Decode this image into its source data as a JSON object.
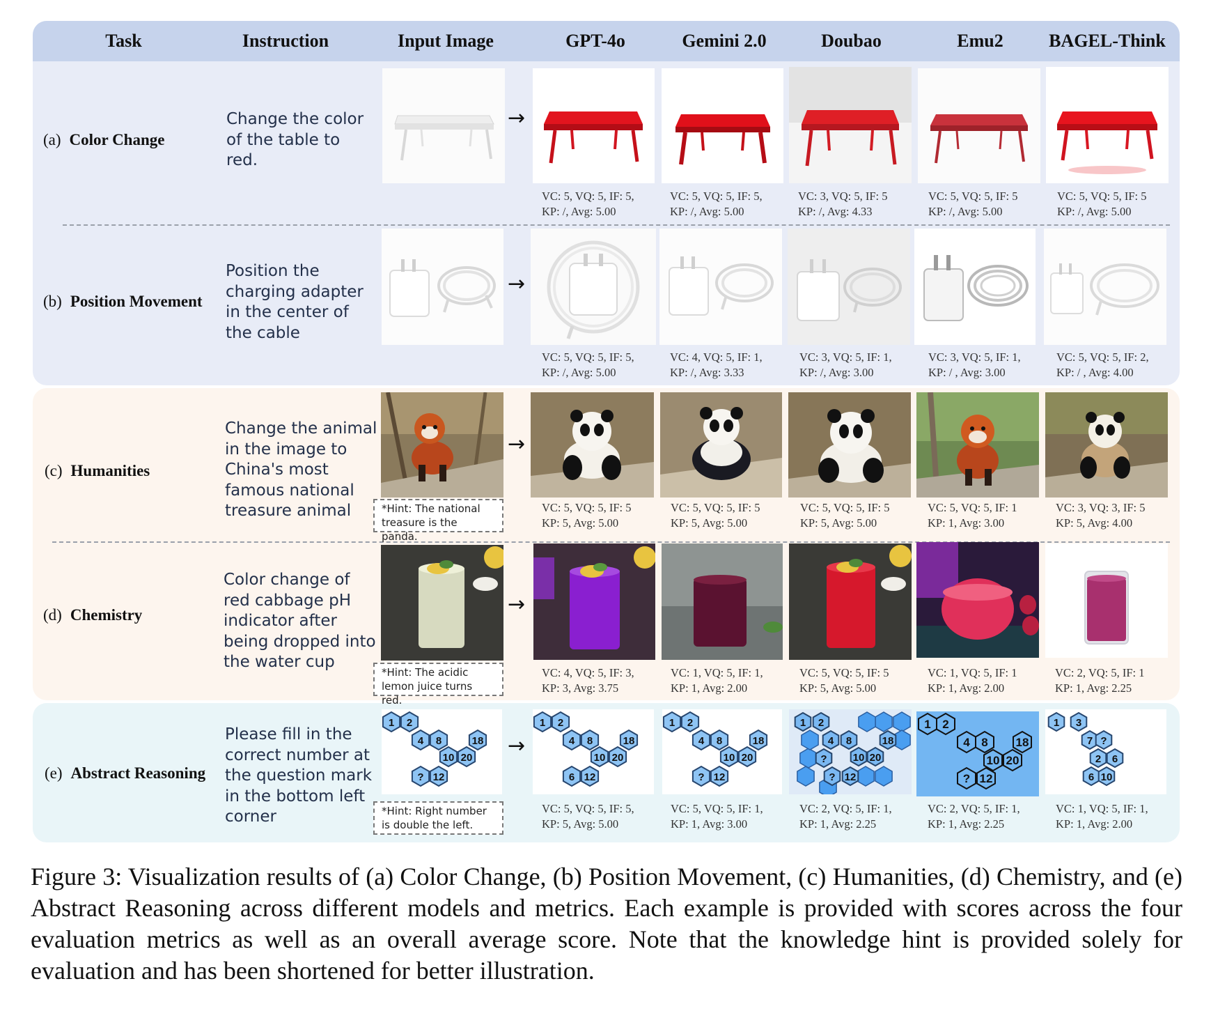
{
  "header": {
    "task": "Task",
    "instruction": "Instruction",
    "input_image": "Input Image",
    "models": [
      "GPT-4o",
      "Gemini 2.0",
      "Doubao",
      "Emu2",
      "BAGEL-Think"
    ]
  },
  "colors": {
    "header_band": "#c6d3ec",
    "blue_panel": "#e8ecf7",
    "peach_panel": "#fdf5ee",
    "cyan_panel": "#e9f5f8"
  },
  "arrow": "→",
  "rows": [
    {
      "index": "(a)",
      "task": "Color Change",
      "instruction": [
        "Change the color",
        "of the table to",
        "red."
      ],
      "hint": null,
      "scores": [
        [
          "VC: 5,  VQ: 5,  IF: 5,",
          "KP:  /,  Avg: 5.00"
        ],
        [
          "VC: 5,  VQ: 5,  IF: 5,",
          "KP:  /,  Avg: 5.00"
        ],
        [
          "VC: 3,  VQ: 5,  IF: 5",
          "KP: /,   Avg: 4.33"
        ],
        [
          "VC: 5,  VQ: 5,  IF: 5",
          "KP:  /,  Avg: 5.00"
        ],
        [
          "VC: 5,  VQ: 5,  IF: 5",
          "KP:  /,  Avg: 5.00"
        ]
      ]
    },
    {
      "index": "(b)",
      "task": "Position Movement",
      "instruction": [
        "Position the",
        "charging adapter",
        "in the center of",
        "the cable"
      ],
      "hint": null,
      "scores": [
        [
          "VC: 5,  VQ: 5,  IF: 5,",
          "KP: /,    Avg: 5.00"
        ],
        [
          "VC: 4,  VQ: 5,  IF: 1,",
          "KP: /,    Avg: 3.33"
        ],
        [
          "VC: 3,  VQ: 5,  IF: 1,",
          "KP: /,    Avg: 3.00"
        ],
        [
          "VC: 3,  VQ: 5,  IF: 1,",
          "KP: / ,   Avg: 3.00"
        ],
        [
          "VC: 5,  VQ: 5,  IF: 2,",
          "KP: / ,   Avg: 4.00"
        ]
      ]
    },
    {
      "index": "(c)",
      "task": "Humanities",
      "instruction": [
        "Change the animal",
        "in the image to",
        "China's most",
        "famous national",
        "treasure animal"
      ],
      "hint": [
        "*Hint: The national",
        "treasure is the panda."
      ],
      "scores": [
        [
          "VC: 5,  VQ: 5,  IF: 5",
          "KP:  5,  Avg: 5.00"
        ],
        [
          "VC: 5,  VQ: 5,  IF: 5",
          "KP:  5,  Avg: 5.00"
        ],
        [
          "VC: 5,  VQ: 5,  IF: 5",
          "KP:  5,  Avg: 5.00"
        ],
        [
          "VC: 5,  VQ: 5,  IF: 1",
          "KP:  1,  Avg: 3.00"
        ],
        [
          "VC: 3,  VQ: 3,  IF: 5",
          "KP:  5,  Avg: 4.00"
        ]
      ]
    },
    {
      "index": "(d)",
      "task": "Chemistry",
      "instruction": [
        "Color change of",
        "red cabbage pH",
        "indicator after",
        "being dropped into",
        "the water cup"
      ],
      "hint": [
        "*Hint: The acidic",
        "lemon juice turns red."
      ],
      "scores": [
        [
          "VC: 4,  VQ: 5,  IF: 3,",
          "KP:  3,  Avg: 3.75"
        ],
        [
          "VC: 1,  VQ: 5,  IF: 1,",
          "KP:  1,  Avg: 2.00"
        ],
        [
          "VC: 5,  VQ: 5,  IF: 5",
          "KP:  5,  Avg: 5.00"
        ],
        [
          "VC: 1,  VQ: 5,  IF: 1",
          "KP:  1,  Avg: 2.00"
        ],
        [
          "VC: 2,  VQ: 5,  IF: 1",
          "KP:  1,  Avg: 2.25"
        ]
      ]
    },
    {
      "index": "(e)",
      "task": "Abstract Reasoning",
      "instruction": [
        "Please fill in the",
        "correct number at",
        "the question mark",
        "in the bottom left",
        "corner"
      ],
      "hint": [
        "*Hint:  Right number",
        "is double the left."
      ],
      "scores": [
        [
          "VC: 5,  VQ: 5,  IF: 5,",
          "KP:  5,  Avg: 5.00"
        ],
        [
          "VC: 5,  VQ: 5,  IF: 1,",
          "KP:  1,  Avg: 3.00"
        ],
        [
          "VC: 2,  VQ: 5,  IF: 1,",
          "KP:  1,  Avg: 2.25"
        ],
        [
          "VC: 2,  VQ: 5,  IF: 1,",
          "KP:  1,  Avg: 2.25"
        ],
        [
          "VC: 1,  VQ: 5,  IF: 1,",
          "KP:  1,  Avg: 2.00"
        ]
      ]
    }
  ],
  "hex_puzzles": {
    "input": [
      "1",
      "2",
      "4",
      "8",
      "18",
      "10",
      "20",
      "?",
      "12"
    ],
    "gpt4o": [
      "1",
      "2",
      "4",
      "8",
      "18",
      "10",
      "20",
      "6",
      "12"
    ],
    "gemini": [
      "1",
      "2",
      "4",
      "8",
      "18",
      "10",
      "20",
      "?",
      "12"
    ],
    "doubao": [
      "1",
      "2",
      "4",
      "8",
      "18",
      "10",
      "20",
      "?",
      "?",
      "12"
    ],
    "emu2": [
      "1",
      "2",
      "4",
      "8",
      "18",
      "10",
      "20",
      "?",
      "12"
    ],
    "bagel": [
      "1",
      "3",
      "7",
      "?",
      "2",
      "6",
      "6",
      "10"
    ]
  },
  "caption": "Figure 3:  Visualization results of (a) Color Change, (b) Position Movement, (c) Humanities, (d) Chemistry, and (e) Abstract Reasoning across different models and metrics. Each example is provided with scores across the four evaluation metrics as well as an overall average score.  Note that the knowledge hint is provided solely for evaluation and has been shortened for better illustration."
}
